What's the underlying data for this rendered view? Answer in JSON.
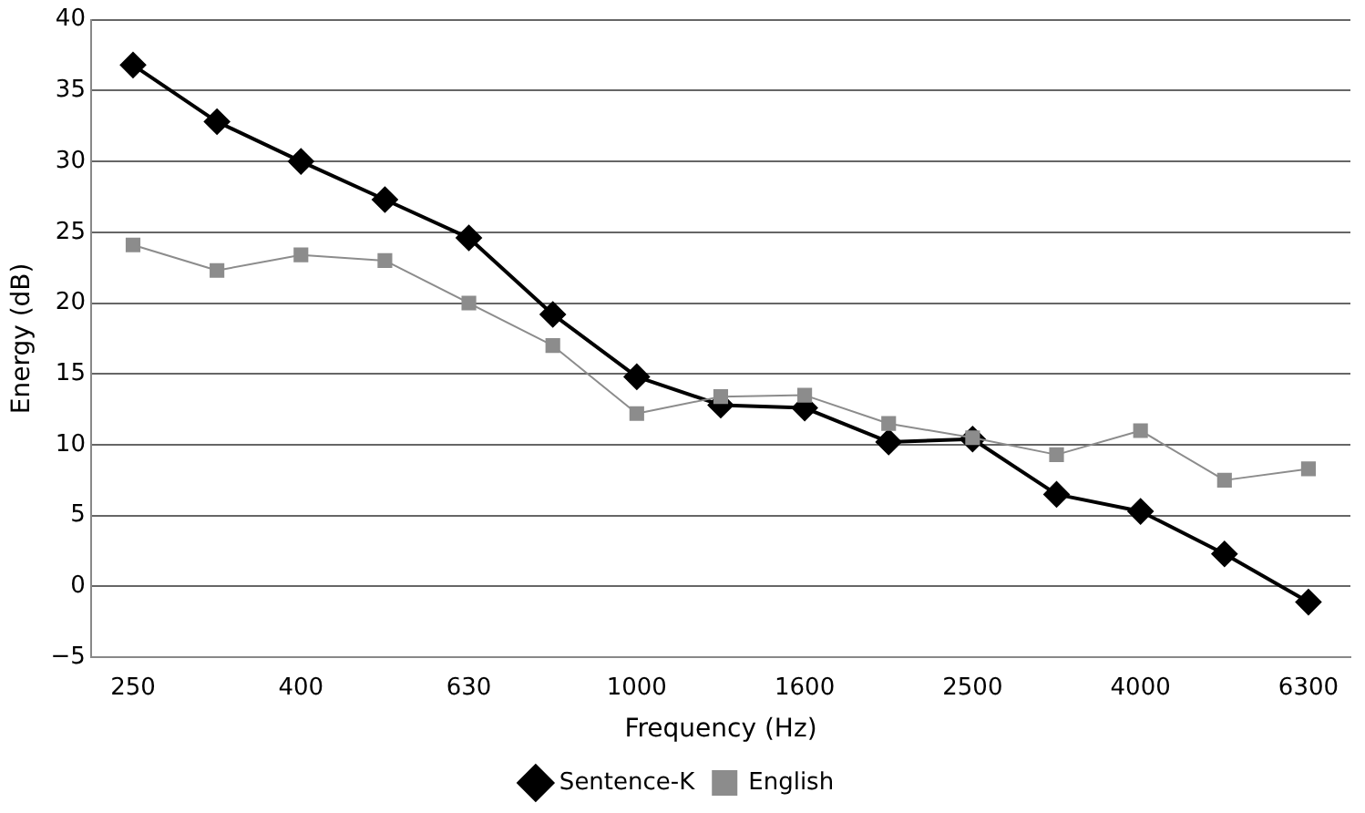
{
  "chart_data": {
    "type": "line",
    "xlabel": "Frequency (Hz)",
    "ylabel": "Energy (dB)",
    "categories": [
      "250",
      null,
      "400",
      null,
      "630",
      null,
      "1000",
      null,
      "1600",
      null,
      "2500",
      null,
      "4000",
      null,
      "6300"
    ],
    "series": [
      {
        "name": "Sentence-K",
        "color": "#000000",
        "marker": "diamond",
        "values": [
          36.8,
          32.8,
          30,
          27.3,
          24.6,
          19.2,
          14.8,
          12.8,
          12.6,
          10.2,
          10.4,
          6.5,
          5.3,
          2.3,
          -1.1
        ]
      },
      {
        "name": "English",
        "color": "#8c8c8c",
        "marker": "square",
        "values": [
          24.1,
          22.3,
          23.4,
          23,
          20,
          17,
          12.2,
          13.4,
          13.5,
          11.5,
          10.5,
          9.3,
          11,
          7.5,
          8.3
        ]
      }
    ],
    "ylim": [
      -5,
      40
    ],
    "yticks": [
      -5,
      0,
      5,
      10,
      15,
      20,
      25,
      30,
      35,
      40
    ],
    "grid": "y",
    "legend": "bottom",
    "line_style": "solid"
  }
}
